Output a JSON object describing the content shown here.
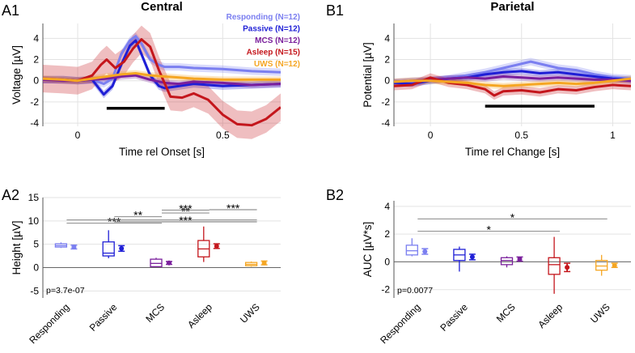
{
  "panel_labels": {
    "a1": "A1",
    "a2": "A2",
    "b1": "B1",
    "b2": "B2"
  },
  "colors": {
    "responding": "#7b7ff0",
    "passive": "#1f1fd6",
    "mcs": "#7a1f9c",
    "asleep": "#c4161c",
    "uws": "#f5a623"
  },
  "chart_data": [
    {
      "id": "A1",
      "type": "line",
      "title": "Central",
      "xlabel": "Time rel Onset [s]",
      "ylabel": "Voltage [µV]",
      "xlim": [
        -0.12,
        0.7
      ],
      "ylim": [
        -4.3,
        5.4
      ],
      "xticks": [
        0,
        0.5
      ],
      "xtick_labels": [
        "0",
        "0.5"
      ],
      "yticks": [
        -4,
        -2,
        0,
        2,
        4
      ],
      "ytick_labels": [
        "-4",
        "-2",
        "0",
        "2",
        "4"
      ],
      "bar": {
        "x_start": 0.1,
        "x_end": 0.3,
        "y": -2.6
      },
      "legend": {
        "position": "top-right",
        "entries": [
          {
            "key": "responding",
            "label": "Responding (N=12)"
          },
          {
            "key": "passive",
            "label": "Passive (N=12)"
          },
          {
            "key": "mcs",
            "label": "MCS (N=12)"
          },
          {
            "key": "asleep",
            "label": "Asleep (N=15)"
          },
          {
            "key": "uws",
            "label": "UWS (N=12)"
          }
        ]
      },
      "series": [
        {
          "key": "responding",
          "band": 0.35,
          "x": [
            -0.12,
            -0.05,
            0,
            0.05,
            0.09,
            0.12,
            0.15,
            0.18,
            0.2,
            0.22,
            0.25,
            0.28,
            0.3,
            0.35,
            0.4,
            0.5,
            0.6,
            0.7
          ],
          "y": [
            0.1,
            0.1,
            0,
            0.1,
            -0.3,
            0.2,
            2.5,
            3.8,
            4.2,
            3.5,
            2.0,
            1.5,
            1.3,
            1.3,
            1.2,
            1.1,
            0.9,
            0.8
          ]
        },
        {
          "key": "passive",
          "band": 0.35,
          "x": [
            -0.12,
            -0.05,
            0,
            0.05,
            0.09,
            0.12,
            0.15,
            0.18,
            0.2,
            0.22,
            0.25,
            0.28,
            0.3,
            0.35,
            0.4,
            0.5,
            0.6,
            0.7
          ],
          "y": [
            0.1,
            0.1,
            0,
            0.1,
            -1.3,
            -0.5,
            1.5,
            3.3,
            3.8,
            2.5,
            0.5,
            -0.5,
            -0.7,
            -0.5,
            -0.3,
            -0.5,
            -0.4,
            -0.3
          ]
        },
        {
          "key": "mcs",
          "band": 0.3,
          "x": [
            -0.12,
            -0.05,
            0,
            0.05,
            0.1,
            0.15,
            0.2,
            0.25,
            0.3,
            0.35,
            0.4,
            0.5,
            0.6,
            0.7
          ],
          "y": [
            0.1,
            0,
            0,
            0.1,
            0.2,
            0.4,
            0.5,
            0.1,
            -0.2,
            -0.3,
            -0.1,
            -0.2,
            -0.4,
            -0.3
          ]
        },
        {
          "key": "asleep",
          "band": 1.3,
          "x": [
            -0.12,
            -0.05,
            0,
            0.05,
            0.08,
            0.1,
            0.13,
            0.16,
            0.19,
            0.22,
            0.25,
            0.28,
            0.32,
            0.36,
            0.4,
            0.45,
            0.5,
            0.55,
            0.6,
            0.65,
            0.7
          ],
          "y": [
            0.2,
            0.1,
            0,
            0.5,
            1.5,
            2.0,
            1.2,
            1.8,
            3.0,
            3.9,
            3.2,
            1.0,
            -1.5,
            -1.6,
            -1.2,
            -1.8,
            -3.2,
            -4.1,
            -4.2,
            -3.6,
            -2.5
          ]
        },
        {
          "key": "uws",
          "band": 0.3,
          "x": [
            -0.12,
            -0.05,
            0,
            0.05,
            0.1,
            0.15,
            0.2,
            0.25,
            0.3,
            0.35,
            0.4,
            0.5,
            0.6,
            0.7
          ],
          "y": [
            0.2,
            0.1,
            0,
            0.2,
            0.4,
            0.6,
            0.7,
            0.5,
            0.4,
            0.3,
            0.2,
            0.1,
            0.1,
            0.1
          ]
        }
      ]
    },
    {
      "id": "B1",
      "type": "line",
      "title": "Parietal",
      "xlabel": "Time rel Change [s]",
      "ylabel": "Potential [µV]",
      "xlim": [
        -0.2,
        1.1
      ],
      "ylim": [
        -4.3,
        5.4
      ],
      "xticks": [
        0,
        0.5,
        1
      ],
      "xtick_labels": [
        "0",
        "0.5",
        "1"
      ],
      "yticks": [
        -4,
        -2,
        0,
        2,
        4
      ],
      "ytick_labels": [
        "-4",
        "-2",
        "0",
        "2",
        "4"
      ],
      "bar": {
        "x_start": 0.3,
        "x_end": 0.9,
        "y": -2.4
      },
      "series": [
        {
          "key": "responding",
          "band": 0.35,
          "x": [
            -0.2,
            -0.1,
            0,
            0.1,
            0.2,
            0.3,
            0.4,
            0.5,
            0.55,
            0.6,
            0.7,
            0.8,
            0.9,
            1.0,
            1.1
          ],
          "y": [
            -0.2,
            -0.1,
            0,
            0.2,
            0.5,
            0.8,
            1.2,
            1.6,
            1.8,
            1.6,
            1.2,
            1.0,
            0.6,
            0.3,
            0.2
          ]
        },
        {
          "key": "passive",
          "band": 0.3,
          "x": [
            -0.2,
            -0.1,
            0,
            0.1,
            0.2,
            0.3,
            0.4,
            0.5,
            0.6,
            0.7,
            0.8,
            0.9,
            1.0,
            1.1
          ],
          "y": [
            -0.2,
            -0.3,
            0,
            0.2,
            0.3,
            0.6,
            0.8,
            0.9,
            0.7,
            0.8,
            0.6,
            0.4,
            0.2,
            0.1
          ]
        },
        {
          "key": "mcs",
          "band": 0.3,
          "x": [
            -0.2,
            -0.1,
            0,
            0.1,
            0.2,
            0.3,
            0.4,
            0.5,
            0.6,
            0.7,
            0.8,
            0.9,
            1.0,
            1.1
          ],
          "y": [
            -0.1,
            0,
            0.1,
            0.2,
            0.3,
            0.2,
            0.4,
            0.3,
            0.2,
            0.3,
            0.2,
            0.1,
            0.1,
            0
          ]
        },
        {
          "key": "asleep",
          "band": 0.4,
          "x": [
            -0.2,
            -0.1,
            0,
            0.1,
            0.2,
            0.3,
            0.35,
            0.4,
            0.5,
            0.6,
            0.7,
            0.8,
            0.9,
            1.0,
            1.1
          ],
          "y": [
            -0.5,
            -0.4,
            0.3,
            -0.2,
            -0.4,
            -0.8,
            -1.4,
            -1.0,
            -0.9,
            -1.1,
            -0.8,
            -0.9,
            -0.6,
            -0.4,
            -0.5
          ]
        },
        {
          "key": "uws",
          "band": 0.3,
          "x": [
            -0.2,
            -0.1,
            0,
            0.1,
            0.2,
            0.3,
            0.4,
            0.5,
            0.6,
            0.7,
            0.8,
            0.9,
            1.0,
            1.1
          ],
          "y": [
            -0.1,
            0,
            0,
            -0.1,
            -0.2,
            -0.4,
            -0.5,
            -0.4,
            -0.3,
            -0.2,
            -0.3,
            -0.2,
            0,
            0.2
          ]
        }
      ]
    },
    {
      "id": "A2",
      "type": "box",
      "ylabel": "Height [µV]",
      "ylim": [
        -6.5,
        15
      ],
      "yticks": [
        -5,
        0,
        5,
        10,
        15
      ],
      "ytick_labels": [
        "-5",
        "0",
        "5",
        "10",
        "15"
      ],
      "categories": [
        "Responding",
        "Passive",
        "MCS",
        "Asleep",
        "UWS"
      ],
      "keys": [
        "responding",
        "passive",
        "mcs",
        "asleep",
        "uws"
      ],
      "pvalue": "p=3.7e-07",
      "boxes": [
        {
          "whisker_lo": 4.2,
          "q1": 4.4,
          "median": 4.7,
          "q3": 5.1,
          "whisker_hi": 5.4,
          "mean": 4.4,
          "sem": 0.4
        },
        {
          "whisker_lo": 2.0,
          "q1": 2.5,
          "median": 3.1,
          "q3": 5.5,
          "whisker_hi": 8.0,
          "mean": 4.1,
          "sem": 0.6
        },
        {
          "whisker_lo": 0.1,
          "q1": 0.2,
          "median": 0.9,
          "q3": 1.8,
          "whisker_hi": 2.1,
          "mean": 1.0,
          "sem": 0.3
        },
        {
          "whisker_lo": 1.2,
          "q1": 2.3,
          "median": 4.0,
          "q3": 5.8,
          "whisker_hi": 8.8,
          "mean": 4.6,
          "sem": 0.5
        },
        {
          "whisker_lo": 0.2,
          "q1": 0.4,
          "median": 0.7,
          "q3": 1.1,
          "whisker_hi": 1.3,
          "mean": 1.0,
          "sem": 0.4
        }
      ],
      "significance": [
        {
          "from": 0,
          "to": 2,
          "y": 9.5,
          "label": "***"
        },
        {
          "from": 0,
          "to": 4,
          "y": 10.2,
          "label": ""
        },
        {
          "from": 1,
          "to": 2,
          "y": 10.9,
          "label": "**"
        },
        {
          "from": 1,
          "to": 4,
          "y": 9.8,
          "label": "***"
        },
        {
          "from": 2,
          "to": 3,
          "y": 11.7,
          "label": "**"
        },
        {
          "from": 2,
          "to": 3,
          "y": 12.3,
          "label": "***"
        },
        {
          "from": 3,
          "to": 4,
          "y": 12.4,
          "label": "***"
        }
      ]
    },
    {
      "id": "B2",
      "type": "box",
      "ylabel": "AUC [µV*s]",
      "ylim": [
        -2.6,
        4.4
      ],
      "yticks": [
        -2,
        0,
        2,
        4
      ],
      "ytick_labels": [
        "-2",
        "0",
        "2",
        "4"
      ],
      "categories": [
        "Responding",
        "Passive",
        "MCS",
        "Asleep",
        "UWS"
      ],
      "keys": [
        "responding",
        "passive",
        "mcs",
        "asleep",
        "uws"
      ],
      "pvalue": "p=0.0077",
      "boxes": [
        {
          "whisker_lo": 0.4,
          "q1": 0.5,
          "median": 0.8,
          "q3": 1.2,
          "whisker_hi": 1.7,
          "mean": 0.75,
          "sem": 0.2
        },
        {
          "whisker_lo": -0.7,
          "q1": 0.1,
          "median": 0.5,
          "q3": 0.9,
          "whisker_hi": 1.1,
          "mean": 0.35,
          "sem": 0.2
        },
        {
          "whisker_lo": -0.4,
          "q1": -0.2,
          "median": 0.1,
          "q3": 0.3,
          "whisker_hi": 0.4,
          "mean": 0.2,
          "sem": 0.15
        },
        {
          "whisker_lo": -2.3,
          "q1": -0.9,
          "median": -0.2,
          "q3": 0.3,
          "whisker_hi": 1.8,
          "mean": -0.4,
          "sem": 0.3
        },
        {
          "whisker_lo": -1.0,
          "q1": -0.6,
          "median": -0.3,
          "q3": 0.1,
          "whisker_hi": 0.5,
          "mean": -0.25,
          "sem": 0.15
        }
      ],
      "significance": [
        {
          "from": 0,
          "to": 3,
          "y": 2.2,
          "label": "*"
        },
        {
          "from": 0,
          "to": 4,
          "y": 3.1,
          "label": "*"
        }
      ]
    }
  ]
}
